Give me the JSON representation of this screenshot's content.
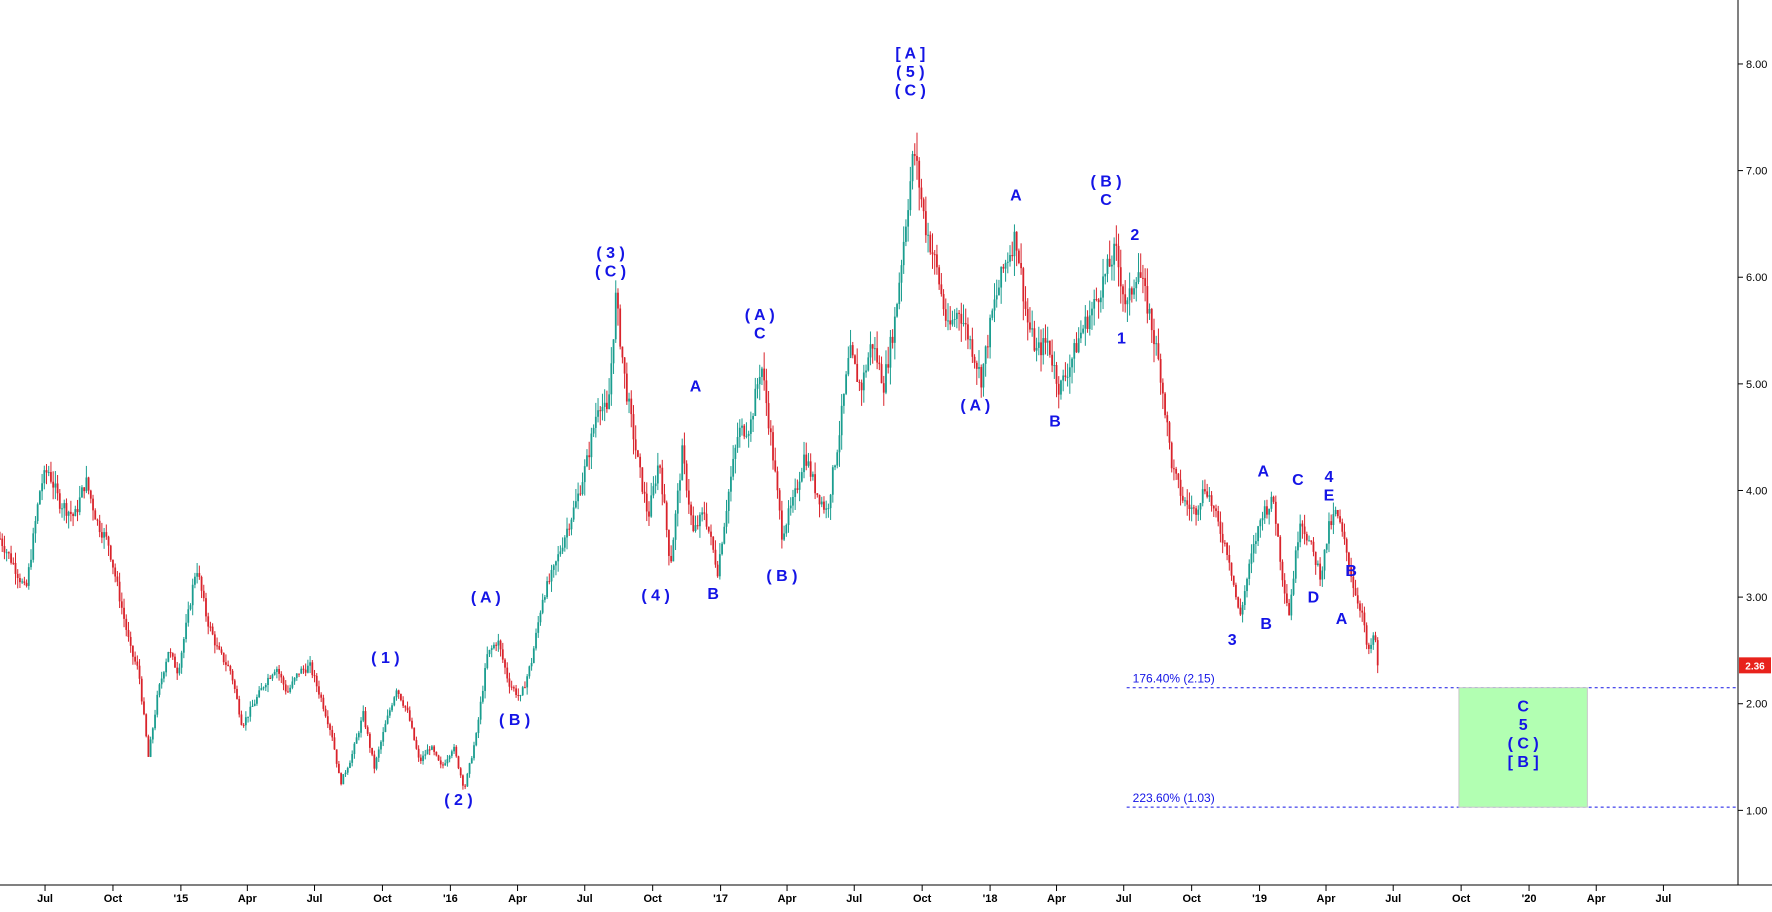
{
  "chart_data": {
    "type": "candlestick",
    "x_tick_labels": [
      "Jul",
      "Oct",
      "'15",
      "Apr",
      "Jul",
      "Oct",
      "'16",
      "Apr",
      "Jul",
      "Oct",
      "'17",
      "Apr",
      "Jul",
      "Oct",
      "'18",
      "Apr",
      "Jul",
      "Oct",
      "'19",
      "Apr",
      "Jul",
      "Oct",
      "'20",
      "Apr",
      "Jul"
    ],
    "y_tick_labels": [
      "1.00",
      "2.00",
      "3.00",
      "4.00",
      "5.00",
      "6.00",
      "7.00",
      "8.00"
    ],
    "ylim": [
      0.3,
      8.6
    ],
    "xlim": [
      "2014-05-01",
      "2020-10-10"
    ],
    "last_price": "2.36",
    "colors": {
      "up": "#1a9d8f",
      "down": "#d9232b",
      "wave": "#1414e6",
      "target_fill": "#b2ffb2",
      "badge": "#e8221c"
    },
    "price_path": [
      [
        "2014-05-01",
        3.55
      ],
      [
        "2014-05-20",
        3.3
      ],
      [
        "2014-06-05",
        3.05
      ],
      [
        "2014-06-25",
        4.05
      ],
      [
        "2014-07-05",
        4.2
      ],
      [
        "2014-07-20",
        3.9
      ],
      [
        "2014-08-10",
        3.75
      ],
      [
        "2014-08-25",
        4.1
      ],
      [
        "2014-09-10",
        3.7
      ],
      [
        "2014-09-25",
        3.5
      ],
      [
        "2014-10-10",
        3.0
      ],
      [
        "2014-10-25",
        2.5
      ],
      [
        "2014-11-05",
        2.3
      ],
      [
        "2014-11-18",
        1.5
      ],
      [
        "2014-12-01",
        2.1
      ],
      [
        "2014-12-15",
        2.5
      ],
      [
        "2014-12-28",
        2.3
      ],
      [
        "2015-01-10",
        2.8
      ],
      [
        "2015-01-22",
        3.3
      ],
      [
        "2015-02-05",
        2.8
      ],
      [
        "2015-02-20",
        2.5
      ],
      [
        "2015-03-10",
        2.3
      ],
      [
        "2015-03-25",
        1.8
      ],
      [
        "2015-04-10",
        2.0
      ],
      [
        "2015-04-25",
        2.2
      ],
      [
        "2015-05-10",
        2.35
      ],
      [
        "2015-05-25",
        2.1
      ],
      [
        "2015-06-10",
        2.3
      ],
      [
        "2015-06-25",
        2.35
      ],
      [
        "2015-07-10",
        2.05
      ],
      [
        "2015-07-25",
        1.7
      ],
      [
        "2015-08-05",
        1.25
      ],
      [
        "2015-08-20",
        1.5
      ],
      [
        "2015-09-05",
        1.9
      ],
      [
        "2015-09-20",
        1.4
      ],
      [
        "2015-10-05",
        1.8
      ],
      [
        "2015-10-20",
        2.15
      ],
      [
        "2015-11-05",
        1.9
      ],
      [
        "2015-11-20",
        1.45
      ],
      [
        "2015-12-05",
        1.6
      ],
      [
        "2015-12-20",
        1.4
      ],
      [
        "2016-01-05",
        1.6
      ],
      [
        "2016-01-20",
        1.2
      ],
      [
        "2016-02-05",
        1.7
      ],
      [
        "2016-02-20",
        2.45
      ],
      [
        "2016-03-05",
        2.6
      ],
      [
        "2016-03-20",
        2.2
      ],
      [
        "2016-04-05",
        2.05
      ],
      [
        "2016-04-20",
        2.4
      ],
      [
        "2016-05-05",
        3.0
      ],
      [
        "2016-05-20",
        3.25
      ],
      [
        "2016-06-05",
        3.6
      ],
      [
        "2016-06-20",
        3.9
      ],
      [
        "2016-07-05",
        4.3
      ],
      [
        "2016-07-20",
        4.85
      ],
      [
        "2016-08-01",
        4.7
      ],
      [
        "2016-08-12",
        5.8
      ],
      [
        "2016-08-25",
        5.0
      ],
      [
        "2016-09-10",
        4.3
      ],
      [
        "2016-09-25",
        3.75
      ],
      [
        "2016-10-10",
        4.3
      ],
      [
        "2016-10-25",
        3.3
      ],
      [
        "2016-11-10",
        4.35
      ],
      [
        "2016-11-25",
        3.6
      ],
      [
        "2016-12-10",
        3.8
      ],
      [
        "2016-12-28",
        3.25
      ],
      [
        "2017-01-10",
        3.9
      ],
      [
        "2017-01-25",
        4.55
      ],
      [
        "2017-02-10",
        4.6
      ],
      [
        "2017-02-25",
        5.2
      ],
      [
        "2017-03-10",
        4.5
      ],
      [
        "2017-03-25",
        3.6
      ],
      [
        "2017-04-10",
        3.9
      ],
      [
        "2017-04-25",
        4.35
      ],
      [
        "2017-05-10",
        4.0
      ],
      [
        "2017-05-25",
        3.8
      ],
      [
        "2017-06-10",
        4.5
      ],
      [
        "2017-06-25",
        5.3
      ],
      [
        "2017-07-10",
        4.95
      ],
      [
        "2017-07-25",
        5.4
      ],
      [
        "2017-08-10",
        5.0
      ],
      [
        "2017-08-25",
        5.6
      ],
      [
        "2017-09-10",
        6.6
      ],
      [
        "2017-09-20",
        7.2
      ],
      [
        "2017-10-05",
        6.5
      ],
      [
        "2017-10-20",
        6.1
      ],
      [
        "2017-11-05",
        5.5
      ],
      [
        "2017-11-20",
        5.7
      ],
      [
        "2017-12-05",
        5.4
      ],
      [
        "2017-12-20",
        5.05
      ],
      [
        "2018-01-05",
        5.7
      ],
      [
        "2018-01-20",
        6.1
      ],
      [
        "2018-02-05",
        6.4
      ],
      [
        "2018-02-20",
        5.6
      ],
      [
        "2018-03-05",
        5.3
      ],
      [
        "2018-03-20",
        5.4
      ],
      [
        "2018-04-05",
        4.95
      ],
      [
        "2018-04-20",
        5.2
      ],
      [
        "2018-05-05",
        5.5
      ],
      [
        "2018-05-20",
        5.7
      ],
      [
        "2018-06-05",
        6.0
      ],
      [
        "2018-06-20",
        6.25
      ],
      [
        "2018-07-05",
        5.7
      ],
      [
        "2018-07-20",
        6.1
      ],
      [
        "2018-08-05",
        5.65
      ],
      [
        "2018-08-20",
        5.1
      ],
      [
        "2018-09-05",
        4.2
      ],
      [
        "2018-09-20",
        3.9
      ],
      [
        "2018-10-05",
        3.8
      ],
      [
        "2018-10-20",
        4.05
      ],
      [
        "2018-11-05",
        3.7
      ],
      [
        "2018-11-20",
        3.4
      ],
      [
        "2018-12-05",
        2.8
      ],
      [
        "2018-12-20",
        3.35
      ],
      [
        "2019-01-05",
        3.8
      ],
      [
        "2019-01-20",
        3.9
      ],
      [
        "2019-02-01",
        3.2
      ],
      [
        "2019-02-10",
        2.85
      ],
      [
        "2019-02-25",
        3.75
      ],
      [
        "2019-03-10",
        3.5
      ],
      [
        "2019-03-25",
        3.2
      ],
      [
        "2019-04-05",
        3.65
      ],
      [
        "2019-04-15",
        3.8
      ],
      [
        "2019-04-28",
        3.45
      ],
      [
        "2019-05-10",
        3.05
      ],
      [
        "2019-05-20",
        2.85
      ],
      [
        "2019-05-28",
        2.45
      ],
      [
        "2019-06-05",
        2.65
      ],
      [
        "2019-06-12",
        2.36
      ]
    ],
    "wave_labels": [
      {
        "date": "2014-10-20",
        "price": 2.25,
        "lines": []
      },
      {
        "date": "2015-10-05",
        "price": 2.38,
        "lines": [
          "( 1 )"
        ]
      },
      {
        "date": "2016-01-12",
        "price": 1.05,
        "lines": [
          "( 2 )"
        ]
      },
      {
        "date": "2016-02-18",
        "price": 2.95,
        "lines": [
          "( A )"
        ]
      },
      {
        "date": "2016-03-28",
        "price": 1.8,
        "lines": [
          "( B )"
        ]
      },
      {
        "date": "2016-08-05",
        "price": 6.18,
        "lines": [
          "( 3 )",
          "( C )"
        ]
      },
      {
        "date": "2016-10-05",
        "price": 2.97,
        "lines": [
          "( 4 )"
        ]
      },
      {
        "date": "2016-11-28",
        "price": 4.93,
        "lines": [
          "A"
        ]
      },
      {
        "date": "2016-12-22",
        "price": 2.98,
        "lines": [
          "B"
        ]
      },
      {
        "date": "2017-02-23",
        "price": 5.6,
        "lines": [
          "( A )",
          "C"
        ]
      },
      {
        "date": "2017-03-25",
        "price": 3.15,
        "lines": [
          "( B )"
        ]
      },
      {
        "date": "2017-09-15",
        "price": 8.05,
        "lines": [
          "[ A ]",
          "( 5 )",
          "( C )"
        ]
      },
      {
        "date": "2017-12-12",
        "price": 4.75,
        "lines": [
          "( A )"
        ]
      },
      {
        "date": "2018-02-05",
        "price": 6.72,
        "lines": [
          "A"
        ]
      },
      {
        "date": "2018-03-30",
        "price": 4.6,
        "lines": [
          "B"
        ]
      },
      {
        "date": "2018-06-07",
        "price": 6.85,
        "lines": [
          "( B )",
          "C"
        ]
      },
      {
        "date": "2018-07-16",
        "price": 6.35,
        "lines": [
          "2"
        ]
      },
      {
        "date": "2018-06-28",
        "price": 5.38,
        "lines": [
          "1"
        ]
      },
      {
        "date": "2018-11-25",
        "price": 2.55,
        "lines": [
          "3"
        ]
      },
      {
        "date": "2019-01-06",
        "price": 4.13,
        "lines": [
          "A"
        ]
      },
      {
        "date": "2019-01-10",
        "price": 2.7,
        "lines": [
          "B"
        ]
      },
      {
        "date": "2019-02-22",
        "price": 4.05,
        "lines": [
          "C"
        ]
      },
      {
        "date": "2019-03-15",
        "price": 2.95,
        "lines": [
          "D"
        ]
      },
      {
        "date": "2019-04-05",
        "price": 4.08,
        "lines": [
          "4",
          "E"
        ]
      },
      {
        "date": "2019-04-22",
        "price": 2.75,
        "lines": [
          "A"
        ]
      },
      {
        "date": "2019-05-05",
        "price": 3.2,
        "lines": [
          "B"
        ]
      }
    ],
    "fib_levels": [
      {
        "label": "176.40% (2.15)",
        "price": 2.15
      },
      {
        "label": "223.60% (1.03)",
        "price": 1.03
      }
    ],
    "fib_start": "2018-07-05",
    "target_zone": {
      "from": "2019-09-28",
      "to": "2020-03-20",
      "price_top": 2.15,
      "price_bottom": 1.03,
      "lines": [
        "C",
        "5",
        "( C )",
        "[ B ]"
      ]
    }
  }
}
